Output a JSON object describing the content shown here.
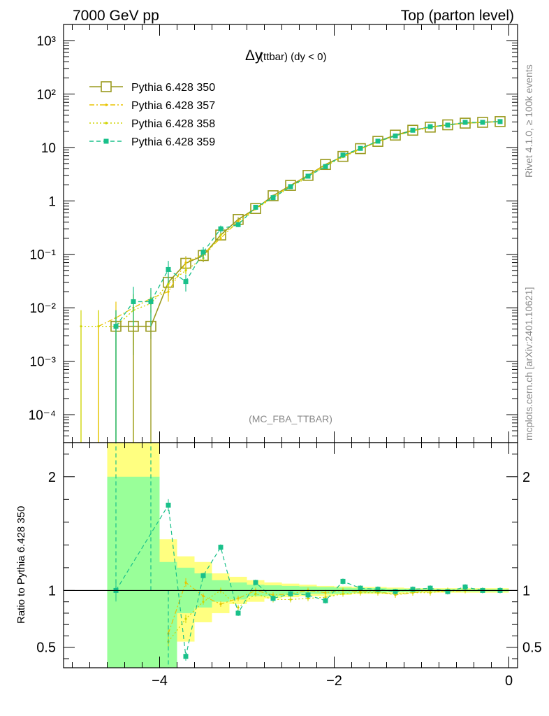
{
  "header": {
    "left": "7000 GeV pp",
    "right": "Top (parton level)"
  },
  "side_text": {
    "rivet": "Rivet 4.1.0, ≥ 100k events",
    "mcplots": "mcplots.cern.ch [arXiv:2401.10621]"
  },
  "chart_data": {
    "type": "line",
    "title": "Δy",
    "title_suffix": "(ttbar) (dy < 0)",
    "watermark": "(MC_FBA_TTBAR)",
    "xlabel": "",
    "ylabel": "",
    "ratio_ylabel": "Ratio to Pythia 6.428 350",
    "xlim": [
      -5.1,
      0.1
    ],
    "ylim": [
      3e-05,
      2000
    ],
    "yscale": "log",
    "ratio_ylim": [
      0.32,
      2.3
    ],
    "x_ticks": [
      "−4",
      "−2",
      "0"
    ],
    "y_ticks": [
      "10⁻⁴",
      "10⁻³",
      "10⁻²",
      "10⁻¹",
      "1",
      "10",
      "10²",
      "10³"
    ],
    "ratio_ticks": [
      "0.5",
      "1",
      "2"
    ],
    "series": [
      {
        "name": "Pythia 6.428 350",
        "color": "#9a9a1e",
        "style": "solid",
        "marker": "open-square",
        "x": [
          -4.5,
          -4.3,
          -4.1,
          -3.9,
          -3.7,
          -3.5,
          -3.3,
          -3.1,
          -2.9,
          -2.7,
          -2.5,
          -2.3,
          -2.1,
          -1.9,
          -1.7,
          -1.5,
          -1.3,
          -1.1,
          -0.9,
          -0.7,
          -0.5,
          -0.3,
          -0.1
        ],
        "values": [
          0.0045,
          0.0045,
          0.0045,
          0.03,
          0.068,
          0.095,
          0.23,
          0.45,
          0.72,
          1.25,
          1.95,
          3.0,
          4.8,
          6.8,
          9.5,
          13.0,
          17.0,
          21.0,
          24.0,
          26.5,
          28.5,
          29.5,
          30.5
        ]
      },
      {
        "name": "Pythia 6.428 357",
        "color": "#e8c400",
        "style": "dashdot",
        "marker": "small-dot",
        "x": [
          -4.7,
          -4.5,
          -4.3,
          -4.1,
          -3.9,
          -3.7,
          -3.5,
          -3.3,
          -3.1,
          -2.9,
          -2.7,
          -2.5,
          -2.3,
          -2.1,
          -1.9,
          -1.7,
          -1.5,
          -1.3,
          -1.1,
          -0.9,
          -0.7,
          -0.5,
          -0.3,
          -0.1
        ],
        "values": [
          0.0045,
          0.0065,
          0.01,
          0.015,
          0.02,
          0.07,
          0.1,
          0.2,
          0.42,
          0.72,
          1.2,
          1.9,
          3.0,
          4.7,
          6.8,
          9.4,
          12.8,
          16.3,
          20.5,
          24.0,
          26.2,
          28.5,
          29.5,
          30.5
        ]
      },
      {
        "name": "Pythia 6.428 358",
        "color": "#cfd400",
        "style": "dotted",
        "marker": "small-dot",
        "x": [
          -4.9,
          -4.7,
          -4.5,
          -4.3,
          -4.1,
          -3.9,
          -3.7,
          -3.5,
          -3.3,
          -3.1,
          -2.9,
          -2.7,
          -2.5,
          -2.3,
          -2.1,
          -1.9,
          -1.7,
          -1.5,
          -1.3,
          -1.1,
          -0.9,
          -0.7,
          -0.5,
          -0.3,
          -0.1
        ],
        "values": [
          0.0045,
          0.0045,
          0.0045,
          0.009,
          0.012,
          0.028,
          0.05,
          0.085,
          0.23,
          0.38,
          0.7,
          1.15,
          1.8,
          2.8,
          4.5,
          6.6,
          9.3,
          12.8,
          16.5,
          20.5,
          23.5,
          26.5,
          28.5,
          29.5,
          30.5
        ]
      },
      {
        "name": "Pythia 6.428 359",
        "color": "#19c08a",
        "style": "dashed",
        "marker": "filled-square",
        "x": [
          -4.5,
          -4.3,
          -4.1,
          -3.9,
          -3.7,
          -3.5,
          -3.3,
          -3.1,
          -2.9,
          -2.7,
          -2.5,
          -2.3,
          -2.1,
          -1.9,
          -1.7,
          -1.5,
          -1.3,
          -1.1,
          -0.9,
          -0.7,
          -0.5,
          -0.3,
          -0.1
        ],
        "values": [
          0.0045,
          0.013,
          0.013,
          0.052,
          0.031,
          0.11,
          0.3,
          0.36,
          0.76,
          1.15,
          1.85,
          2.9,
          4.4,
          7.2,
          9.6,
          13.1,
          16.4,
          21.0,
          24.5,
          26.2,
          29.5,
          29.5,
          30.5
        ]
      }
    ],
    "ratio_series": [
      {
        "name": "Pythia 6.428 357",
        "x": [
          -3.9,
          -3.7,
          -3.5,
          -3.3,
          -3.1,
          -2.9,
          -2.7,
          -2.5,
          -2.3,
          -2.1,
          -1.9,
          -1.7,
          -1.5,
          -1.3,
          -1.1,
          -0.9,
          -0.7,
          -0.5,
          -0.3,
          -0.1
        ],
        "values": [
          0.62,
          1.07,
          0.95,
          0.88,
          0.93,
          1.0,
          0.96,
          0.97,
          1.0,
          0.98,
          1.0,
          0.99,
          0.99,
          0.96,
          0.98,
          1.0,
          0.99,
          1.0,
          1.0,
          1.0
        ]
      },
      {
        "name": "Pythia 6.428 358",
        "x": [
          -3.9,
          -3.7,
          -3.5,
          -3.3,
          -3.1,
          -2.9,
          -2.7,
          -2.5,
          -2.3,
          -2.1,
          -1.9,
          -1.7,
          -1.5,
          -1.3,
          -1.1,
          -0.9,
          -0.7,
          -0.5,
          -0.3,
          -0.1
        ],
        "values": [
          0.55,
          0.75,
          0.9,
          1.0,
          0.85,
          0.97,
          0.92,
          0.92,
          0.93,
          0.94,
          0.97,
          0.98,
          0.98,
          0.97,
          0.98,
          0.98,
          1.0,
          1.0,
          1.0,
          1.0
        ]
      },
      {
        "name": "Pythia 6.428 359",
        "x": [
          -4.5,
          -3.9,
          -3.7,
          -3.5,
          -3.3,
          -3.1,
          -2.9,
          -2.7,
          -2.5,
          -2.3,
          -2.1,
          -1.9,
          -1.7,
          -1.5,
          -1.3,
          -1.1,
          -0.9,
          -0.7,
          -0.5,
          -0.3,
          -0.1
        ],
        "values": [
          1.0,
          1.75,
          0.42,
          1.13,
          1.38,
          0.8,
          1.07,
          0.93,
          0.97,
          0.96,
          0.91,
          1.08,
          1.02,
          1.01,
          0.99,
          1.01,
          1.02,
          0.99,
          1.03,
          1.0,
          1.0
        ]
      }
    ],
    "ratio_bands": {
      "edges": [
        -4.6,
        -4.0,
        -3.8,
        -3.6,
        -3.4,
        -3.2,
        -3.0,
        -2.8,
        -2.6,
        -2.4,
        -2.2,
        -2.0,
        -1.8,
        -1.6,
        -1.4,
        -1.2,
        -1.0,
        -0.8,
        -0.6,
        -0.4,
        -0.2,
        0.0
      ],
      "yellow_lo": [
        0.32,
        0.32,
        0.55,
        0.72,
        0.8,
        0.88,
        0.9,
        0.93,
        0.94,
        0.95,
        0.95,
        0.96,
        0.97,
        0.97,
        0.97,
        0.98,
        0.98,
        0.98,
        0.98,
        0.98,
        0.98
      ],
      "yellow_hi": [
        2.3,
        1.45,
        1.3,
        1.25,
        1.15,
        1.12,
        1.09,
        1.07,
        1.06,
        1.05,
        1.04,
        1.035,
        1.03,
        1.03,
        1.025,
        1.02,
        1.02,
        1.02,
        1.02,
        1.02,
        1.02
      ],
      "green_lo": [
        0.32,
        0.32,
        0.8,
        0.85,
        0.9,
        0.92,
        0.95,
        0.95,
        0.96,
        0.97,
        0.97,
        0.97,
        0.98,
        0.98,
        0.985,
        0.985,
        0.99,
        0.99,
        0.99,
        0.99,
        0.99
      ],
      "green_hi": [
        2.0,
        1.25,
        1.2,
        1.15,
        1.09,
        1.07,
        1.05,
        1.045,
        1.04,
        1.035,
        1.03,
        1.025,
        1.02,
        1.02,
        1.015,
        1.015,
        1.01,
        1.01,
        1.01,
        1.01,
        1.01
      ]
    }
  }
}
